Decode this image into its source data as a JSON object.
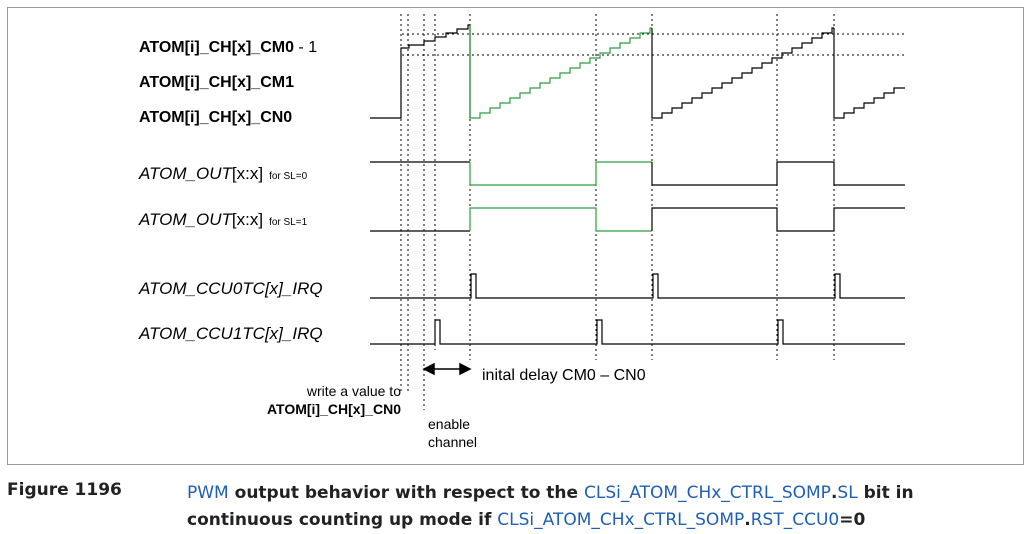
{
  "colors": {
    "black": "#000000",
    "green": "#2e9e3e",
    "caption_link": "#1f5fb4"
  },
  "labels": {
    "cm0_name": "ATOM[i]_CH[x]_CM0",
    "cm0_suffix": " - 1",
    "cm1": "ATOM[i]_CH[x]_CM1",
    "cn0": "ATOM[i]_CH[x]_CN0",
    "out_sl0_main": "ATOM_OUT",
    "out_sl0_idx": "[x:x]",
    "out_sl0_note": "for SL=0",
    "out_sl1_main": "ATOM_OUT",
    "out_sl1_idx": "[x:x]",
    "out_sl1_note": "for SL=1",
    "ccu0_irq": "ATOM_CCU0TC[x]_IRQ",
    "ccu1_irq": "ATOM_CCU1TC[x]_IRQ"
  },
  "annotations": {
    "delay": "inital delay CM0 – CN0",
    "write_line1": "write a value to",
    "write_line2": "ATOM[i]_CH[x]_CN0",
    "enable_line1": "enable",
    "enable_line2": "channel"
  },
  "caption": {
    "number": "Figure 1196",
    "pwm": "PWM",
    "t1": " output behavior with respect to the ",
    "reg1": "CLSi_ATOM_CHx_CTRL_SOMP",
    "dot1": ".",
    "bit1": "SL",
    "t2": " bit in continuous counting up mode if ",
    "reg2": "CLSi_ATOM_CHx_CTRL_SOMP",
    "dot2": ".",
    "bit2": "RST_CCU0",
    "t3": "=0"
  }
}
